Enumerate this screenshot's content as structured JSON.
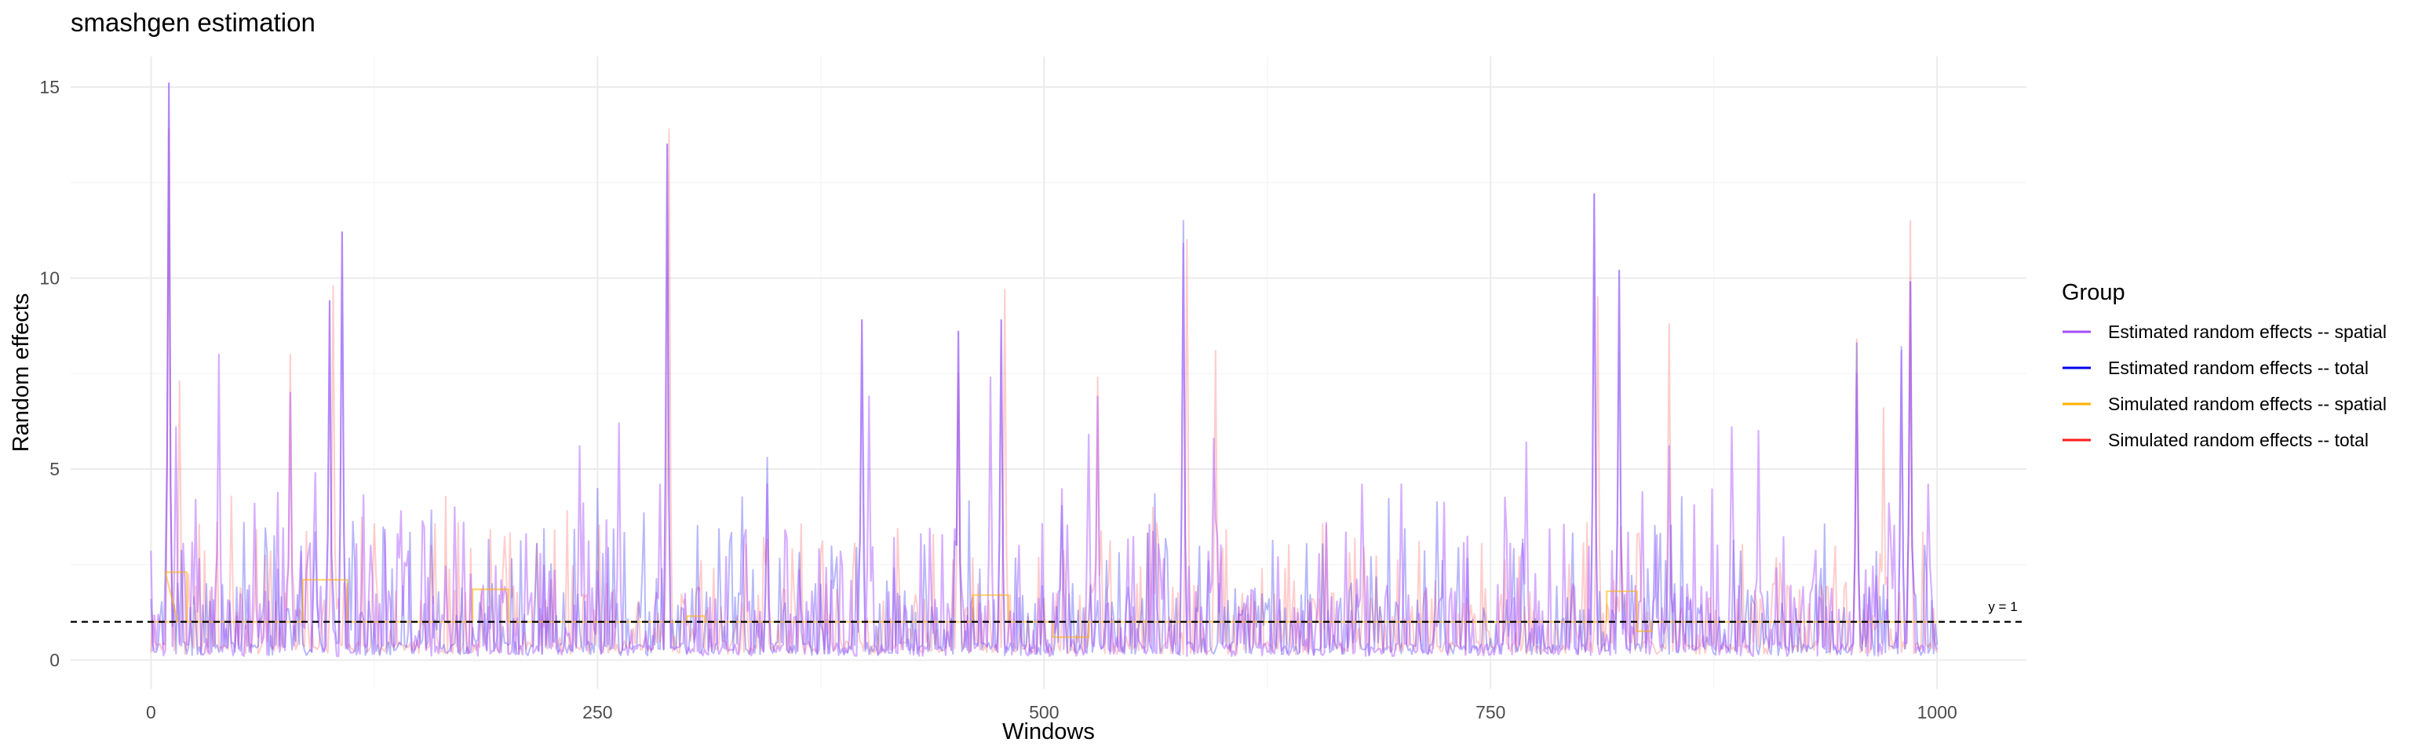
{
  "chart_data": {
    "type": "line",
    "title": "smashgen estimation",
    "xlabel": "Windows",
    "ylabel": "Random effects",
    "xlim": [
      -45,
      1050
    ],
    "ylim": [
      -0.75,
      15.8
    ],
    "x_ticks": [
      0,
      250,
      500,
      750,
      1000
    ],
    "y_ticks": [
      0,
      5,
      10,
      15
    ],
    "grid": true,
    "legend": {
      "title": "Group",
      "position": "right",
      "entries": [
        {
          "label": "Estimated random effects -- spatial",
          "color": "#a64dff"
        },
        {
          "label": "Estimated random effects -- total",
          "color": "#0000ee"
        },
        {
          "label": "Simulated random effects -- spatial",
          "color": "#ffb000"
        },
        {
          "label": "Simulated random effects -- total",
          "color": "#ff1a1a"
        }
      ]
    },
    "reference_line": {
      "y": 1,
      "label": "y = 1",
      "style": "dashed"
    },
    "series": [
      {
        "name": "Estimated random effects -- spatial",
        "color": "#a64dff",
        "note_x_start": 0,
        "note_x_step": 1,
        "peaks": [
          [
            10,
            15.1
          ],
          [
            14,
            6.1
          ],
          [
            25,
            4.2
          ],
          [
            38,
            8.0
          ],
          [
            58,
            4.1
          ],
          [
            78,
            7.0
          ],
          [
            92,
            4.9
          ],
          [
            100,
            9.4
          ],
          [
            107,
            11.2
          ],
          [
            140,
            3.9
          ],
          [
            175,
            3.6
          ],
          [
            210,
            3.3
          ],
          [
            240,
            5.6
          ],
          [
            262,
            6.2
          ],
          [
            285,
            4.6
          ],
          [
            289,
            13.5
          ],
          [
            345,
            4.6
          ],
          [
            398,
            8.9
          ],
          [
            402,
            6.9
          ],
          [
            452,
            8.6
          ],
          [
            470,
            7.4
          ],
          [
            476,
            8.9
          ],
          [
            525,
            5.9
          ],
          [
            530,
            6.9
          ],
          [
            578,
            10.9
          ],
          [
            595,
            5.8
          ],
          [
            678,
            4.6
          ],
          [
            700,
            4.6
          ],
          [
            770,
            5.7
          ],
          [
            808,
            12.2
          ],
          [
            822,
            10.2
          ],
          [
            835,
            4.4
          ],
          [
            850,
            5.6
          ],
          [
            885,
            6.1
          ],
          [
            900,
            6.0
          ],
          [
            955,
            7.5
          ],
          [
            980,
            8.1
          ],
          [
            985,
            9.9
          ],
          [
            995,
            4.6
          ]
        ]
      },
      {
        "name": "Estimated random effects -- total",
        "color": "#0000ee",
        "peaks": [
          [
            10,
            15.1
          ],
          [
            100,
            9.4
          ],
          [
            107,
            11.2
          ],
          [
            289,
            13.5
          ],
          [
            345,
            5.3
          ],
          [
            398,
            8.9
          ],
          [
            452,
            8.6
          ],
          [
            476,
            8.9
          ],
          [
            578,
            11.5
          ],
          [
            808,
            12.2
          ],
          [
            822,
            10.2
          ],
          [
            955,
            8.3
          ],
          [
            980,
            8.2
          ],
          [
            985,
            9.9
          ]
        ]
      },
      {
        "name": "Simulated random effects -- spatial",
        "color": "#ffb000",
        "segments": [
          [
            0,
            15,
            1.0
          ],
          [
            8,
            20,
            2.3
          ],
          [
            20,
            85,
            1.0
          ],
          [
            85,
            110,
            2.1
          ],
          [
            110,
            180,
            1.0
          ],
          [
            180,
            200,
            1.85
          ],
          [
            200,
            300,
            1.0
          ],
          [
            300,
            310,
            1.15
          ],
          [
            310,
            460,
            1.0
          ],
          [
            460,
            480,
            1.7
          ],
          [
            480,
            505,
            1.0
          ],
          [
            505,
            525,
            0.6
          ],
          [
            525,
            815,
            1.0
          ],
          [
            815,
            832,
            1.8
          ],
          [
            832,
            840,
            0.75
          ],
          [
            840,
            1000,
            1.0
          ]
        ]
      },
      {
        "name": "Simulated random effects -- total",
        "color": "#ff1a1a",
        "peaks": [
          [
            10,
            13.9
          ],
          [
            16,
            7.3
          ],
          [
            78,
            8.0
          ],
          [
            102,
            9.8
          ],
          [
            290,
            13.9
          ],
          [
            452,
            7.5
          ],
          [
            478,
            9.7
          ],
          [
            530,
            7.4
          ],
          [
            580,
            11.0
          ],
          [
            596,
            8.1
          ],
          [
            810,
            9.5
          ],
          [
            850,
            8.8
          ],
          [
            955,
            8.4
          ],
          [
            970,
            6.6
          ],
          [
            985,
            11.5
          ]
        ]
      }
    ]
  }
}
